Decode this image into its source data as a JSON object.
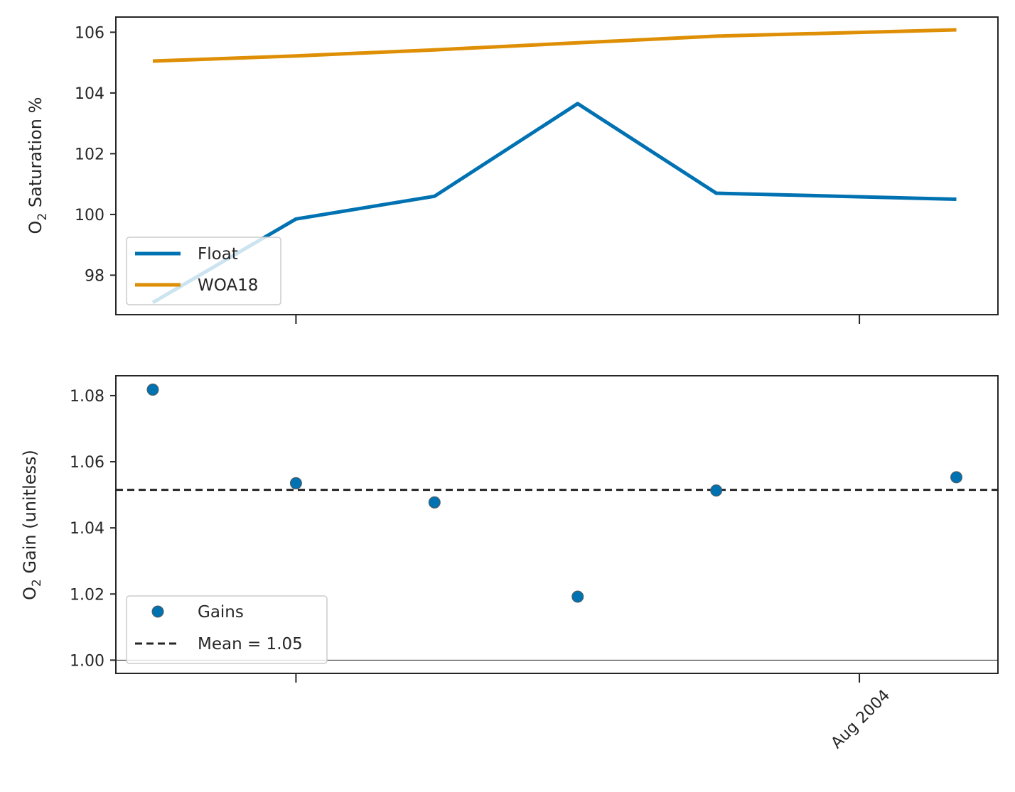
{
  "chart_data": [
    {
      "type": "line",
      "ylabel": {
        "base": "O",
        "sub": "2",
        "rest": " Saturation %"
      },
      "ylim": [
        96.7,
        106.5
      ],
      "yticks": [
        98,
        100,
        102,
        104,
        106
      ],
      "x": [
        "2004-03-02",
        "2004-04-02",
        "2004-05-02",
        "2004-06-02",
        "2004-07-02",
        "2004-08-02",
        "2004-08-23"
      ],
      "xticks": [
        "2004-04-02",
        "2004-08-02"
      ],
      "xticklabels": [
        "",
        ""
      ],
      "xdomain": [
        "2004-02-23",
        "2004-09-01"
      ],
      "series": [
        {
          "name": "Float",
          "color": "#0072b2",
          "x": [
            "2004-03-02",
            "2004-04-02",
            "2004-05-02",
            "2004-06-02",
            "2004-07-02",
            "2004-08-23"
          ],
          "values": [
            97.1,
            99.85,
            100.6,
            103.65,
            100.7,
            100.5
          ]
        },
        {
          "name": "WOA18",
          "color": "#de8f05",
          "x": [
            "2004-03-02",
            "2004-04-02",
            "2004-05-02",
            "2004-06-02",
            "2004-07-02",
            "2004-08-23"
          ],
          "values": [
            105.05,
            105.22,
            105.42,
            105.65,
            105.87,
            106.08
          ]
        }
      ],
      "grid": false,
      "legend": "lower-left"
    },
    {
      "type": "scatter",
      "ylabel": {
        "base": "O",
        "sub": "2",
        "rest": " Gain (unitless)"
      },
      "ylim": [
        0.996,
        1.086
      ],
      "yticks": [
        "1.00",
        "1.02",
        "1.04",
        "1.06",
        "1.08"
      ],
      "xticks": [
        "2004-04-02",
        "2004-08-02"
      ],
      "xticklabels": [
        "",
        "Aug 2004"
      ],
      "xdomain": [
        "2004-02-23",
        "2004-09-01"
      ],
      "series": [
        {
          "name": "Gains",
          "color": "#0072b2",
          "x": [
            "2004-03-02",
            "2004-04-02",
            "2004-05-02",
            "2004-06-02",
            "2004-07-02",
            "2004-08-23"
          ],
          "values": [
            1.0818,
            1.0535,
            1.0477,
            1.0192,
            1.0513,
            1.0553
          ]
        }
      ],
      "mean_line": {
        "label": "Mean = 1.05",
        "value": 1.0515,
        "color": "#262626"
      },
      "reference_line": 1.0,
      "grid": false,
      "legend": "lower-left"
    }
  ]
}
